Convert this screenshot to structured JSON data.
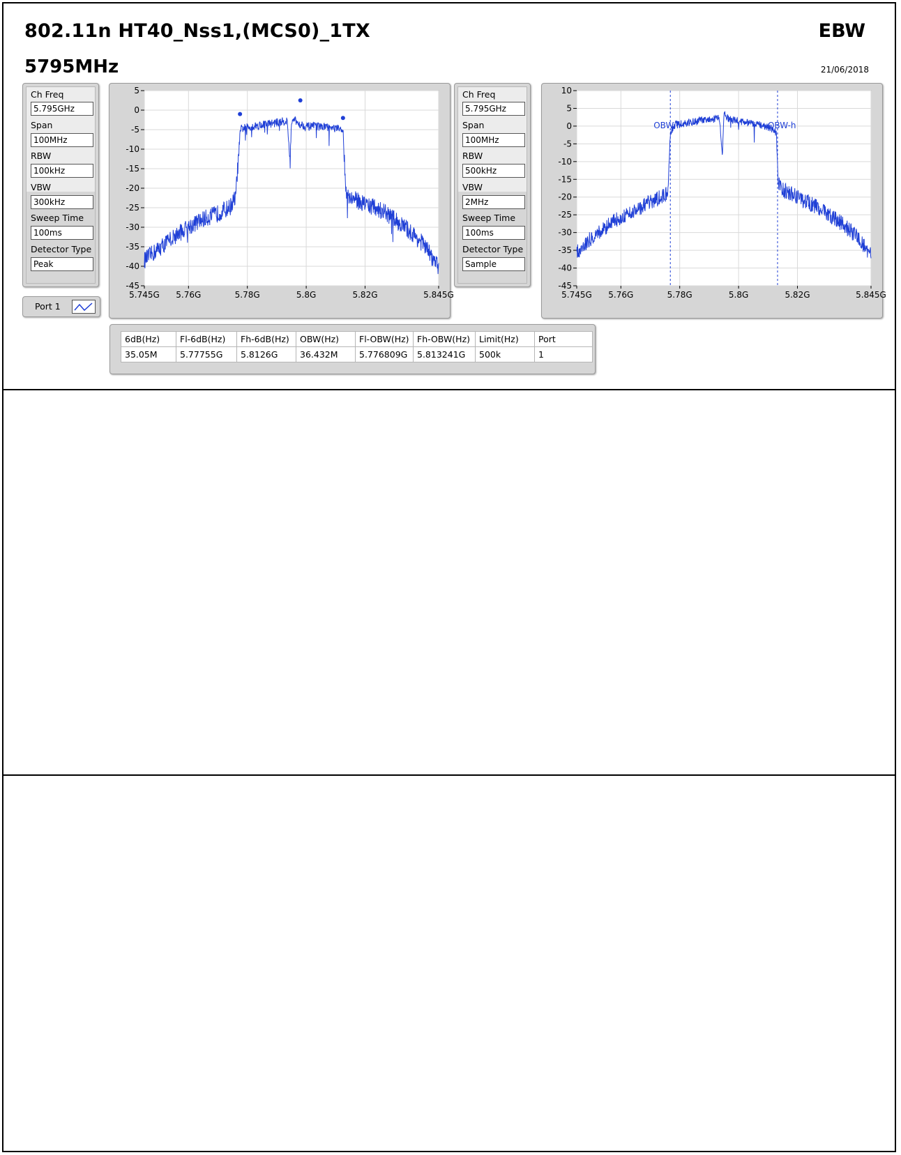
{
  "header": {
    "title": "802.11n HT40_Nss1,(MCS0)_1TX",
    "frequency": "5795MHz",
    "test_name": "EBW",
    "date": "21/06/2018"
  },
  "settings_left": {
    "ch_freq_label": "Ch Freq",
    "ch_freq": "5.795GHz",
    "span_label": "Span",
    "span": "100MHz",
    "rbw_label": "RBW",
    "rbw": "100kHz",
    "vbw_label": "VBW",
    "vbw": "300kHz",
    "sweep_label": "Sweep Time",
    "sweep": "100ms",
    "detector_label": "Detector Type",
    "detector": "Peak"
  },
  "settings_right": {
    "ch_freq_label": "Ch Freq",
    "ch_freq": "5.795GHz",
    "span_label": "Span",
    "span": "100MHz",
    "rbw_label": "RBW",
    "rbw": "500kHz",
    "vbw_label": "VBW",
    "vbw": "2MHz",
    "sweep_label": "Sweep Time",
    "sweep": "100ms",
    "detector_label": "Detector Type",
    "detector": "Sample"
  },
  "legend": {
    "label": "Port 1"
  },
  "results_table": {
    "headers": [
      "6dB(Hz)",
      "Fl-6dB(Hz)",
      "Fh-6dB(Hz)",
      "OBW(Hz)",
      "Fl-OBW(Hz)",
      "Fh-OBW(Hz)",
      "Limit(Hz)",
      "Port"
    ],
    "row": [
      "35.05M",
      "5.77755G",
      "5.8126G",
      "36.432M",
      "5.776809G",
      "5.813241G",
      "500k",
      "1"
    ]
  },
  "colors": {
    "trace": "#1f3fd6",
    "panel": "#d6d6d6",
    "grid": "#d9d9d9"
  },
  "chart_data": [
    {
      "type": "line",
      "title": "",
      "xlabel": "",
      "ylabel": "",
      "xlim": [
        5.745,
        5.845
      ],
      "ylim": [
        -45,
        5
      ],
      "x_ticks": [
        5.745,
        5.76,
        5.78,
        5.8,
        5.82,
        5.845
      ],
      "x_tick_labels": [
        "5.745G",
        "5.76G",
        "5.78G",
        "5.8G",
        "5.82G",
        "5.845G"
      ],
      "y_ticks": [
        5,
        0,
        -5,
        -10,
        -15,
        -20,
        -25,
        -30,
        -35,
        -40,
        -45
      ],
      "y_tick_labels": [
        "5",
        "0",
        "-5",
        "-10",
        "-15",
        "-20",
        "-25",
        "-30",
        "-35",
        "-40",
        "-45"
      ],
      "grid": true,
      "series": [
        {
          "x": [
            5.745,
            5.75,
            5.755,
            5.76,
            5.765,
            5.77,
            5.774,
            5.776,
            5.7775,
            5.778,
            5.785,
            5.79,
            5.7935,
            5.7945,
            5.795,
            5.7955,
            5.797,
            5.8,
            5.805,
            5.81,
            5.8125,
            5.8135,
            5.815,
            5.82,
            5.825,
            5.83,
            5.835,
            5.84,
            5.845
          ],
          "y": [
            -38,
            -35,
            -32,
            -29.5,
            -27.5,
            -26,
            -24.5,
            -22,
            -6,
            -4.5,
            -3.5,
            -3,
            -2.5,
            -12,
            -4,
            -2,
            -3,
            -4,
            -4,
            -4.5,
            -5,
            -20,
            -22,
            -23.5,
            -25,
            -27.5,
            -30.5,
            -34,
            -40
          ]
        }
      ],
      "markers": [
        {
          "x": 5.7775,
          "y": -1
        },
        {
          "x": 5.798,
          "y": 2.5
        },
        {
          "x": 5.8125,
          "y": -2
        }
      ]
    },
    {
      "type": "line",
      "title": "",
      "xlabel": "",
      "ylabel": "",
      "xlim": [
        5.745,
        5.845
      ],
      "ylim": [
        -45,
        10
      ],
      "x_ticks": [
        5.745,
        5.76,
        5.78,
        5.8,
        5.82,
        5.845
      ],
      "x_tick_labels": [
        "5.745G",
        "5.76G",
        "5.78G",
        "5.8G",
        "5.82G",
        "5.845G"
      ],
      "y_ticks": [
        10,
        5,
        0,
        -5,
        -10,
        -15,
        -20,
        -25,
        -30,
        -35,
        -40,
        -45
      ],
      "y_tick_labels": [
        "10",
        "5",
        "0",
        "-5",
        "-10",
        "-15",
        "-20",
        "-25",
        "-30",
        "-35",
        "-40",
        "-45"
      ],
      "grid": true,
      "series": [
        {
          "x": [
            5.745,
            5.75,
            5.755,
            5.76,
            5.765,
            5.77,
            5.774,
            5.776,
            5.7768,
            5.778,
            5.785,
            5.79,
            5.7935,
            5.7945,
            5.795,
            5.7955,
            5.797,
            5.8,
            5.805,
            5.81,
            5.8128,
            5.8135,
            5.815,
            5.82,
            5.825,
            5.83,
            5.835,
            5.84,
            5.845
          ],
          "y": [
            -35,
            -31,
            -28,
            -25,
            -23,
            -21,
            -19.5,
            -18,
            -2,
            0.5,
            1.5,
            2,
            2.5,
            -8,
            3,
            3.5,
            2,
            1.5,
            1,
            0,
            -1.5,
            -15,
            -17.5,
            -19.5,
            -21.5,
            -24,
            -27,
            -30.5,
            -36
          ]
        }
      ],
      "obw_lines": [
        5.776809,
        5.813241
      ],
      "obw_labels": [
        "OBW",
        "OBW-h"
      ]
    }
  ]
}
